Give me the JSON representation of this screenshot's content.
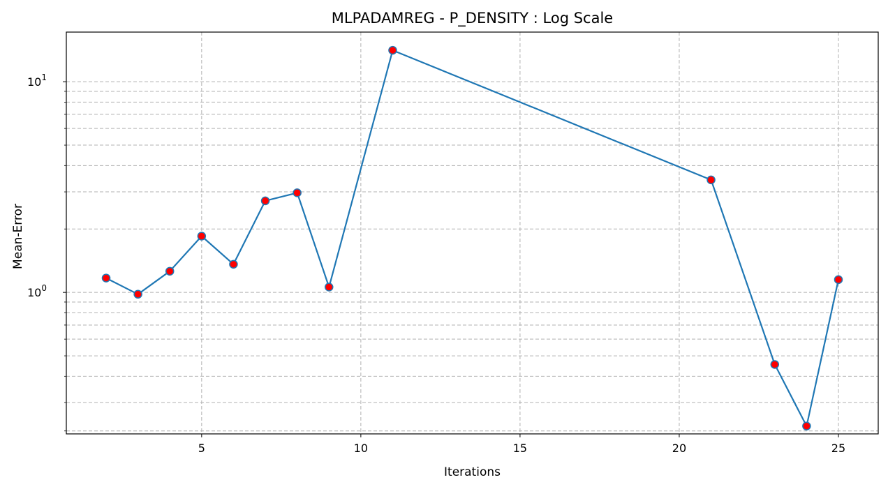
{
  "chart_data": {
    "type": "line",
    "title": "MLPADAMREG - P_DENSITY : Log Scale",
    "xlabel": "Iterations",
    "ylabel": "Mean-Error",
    "yscale": "log",
    "xlim": [
      0.75,
      26.25
    ],
    "ylim": [
      0.213,
      17.2
    ],
    "grid": true,
    "grid_style": "dashed",
    "xticks": [
      5,
      10,
      15,
      20,
      25
    ],
    "yticks_major": [
      {
        "value": 1,
        "base": "10",
        "exp": "0"
      },
      {
        "value": 10,
        "base": "10",
        "exp": "1"
      }
    ],
    "yticks_minor": [
      0.22,
      0.3,
      0.4,
      0.5,
      0.6,
      0.7,
      0.8,
      0.9,
      2,
      3,
      4,
      5,
      6,
      7,
      8,
      9
    ],
    "series": [
      {
        "line_color": "#1f77b4",
        "marker_color": "#ff0000",
        "marker_edge_color": "#1f77b4",
        "points": [
          {
            "x": 2,
            "y": 1.17
          },
          {
            "x": 3,
            "y": 0.98
          },
          {
            "x": 4,
            "y": 1.26
          },
          {
            "x": 5,
            "y": 1.85
          },
          {
            "x": 6,
            "y": 1.36
          },
          {
            "x": 7,
            "y": 2.72
          },
          {
            "x": 8,
            "y": 2.97
          },
          {
            "x": 9,
            "y": 1.06
          },
          {
            "x": 11,
            "y": 14.1
          },
          {
            "x": 21,
            "y": 3.42
          },
          {
            "x": 23,
            "y": 0.455
          },
          {
            "x": 24,
            "y": 0.232
          },
          {
            "x": 25,
            "y": 1.15
          }
        ]
      }
    ]
  }
}
